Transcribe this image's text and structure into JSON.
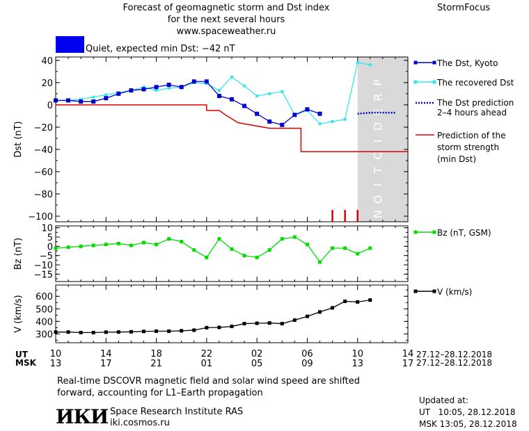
{
  "header": {
    "title_lines": [
      "Forecast of geomagnetic storm and Dst index",
      "for the next several hours",
      "www.spaceweather.ru"
    ],
    "brand": "StormFocus"
  },
  "status": {
    "label": "Quiet, expected min Dst: −42 nT",
    "color": "#0000ee"
  },
  "colors": {
    "kyoto": "#0000cc",
    "recovered": "#33e6ee",
    "prediction": "#0000cc",
    "storm": "#dd0000",
    "bz": "#00dd00",
    "speed": "#000000",
    "shade": "#d9d9d9",
    "ticks_red": "#dd0000"
  },
  "time_axis": {
    "ut_label": "UT",
    "msk_label": "MSK",
    "ut_ticks": [
      "10",
      "14",
      "18",
      "22",
      "02",
      "06",
      "10",
      "14"
    ],
    "msk_ticks": [
      "13",
      "17",
      "21",
      "01",
      "05",
      "09",
      "13",
      "17"
    ],
    "ut_range": "27.12–28.12.2018",
    "msk_range": "27.12–28.12.2018"
  },
  "shade_text": "PREDICTION",
  "chart_data": [
    {
      "type": "line",
      "ylabel": "Dst (nT)",
      "ylim": [
        -105,
        43
      ],
      "yticks": [
        "40",
        "20",
        "0",
        "−20",
        "−40",
        "−60",
        "−80",
        "−100"
      ],
      "yticks_values": [
        40,
        20,
        0,
        -20,
        -40,
        -60,
        -80,
        -100
      ],
      "x_range_hours": [
        10,
        38
      ],
      "series": [
        {
          "name": "The Dst, Kyoto",
          "x": [
            10,
            11,
            12,
            13,
            14,
            15,
            16,
            17,
            18,
            19,
            20,
            21,
            22,
            23,
            24,
            25,
            26,
            27,
            28,
            29,
            30,
            31
          ],
          "values": [
            4,
            4,
            3,
            3,
            6,
            10,
            13,
            14,
            16,
            18,
            16,
            21,
            21,
            8,
            5,
            -1,
            -8,
            -15,
            -18,
            -9,
            -4,
            -8
          ]
        },
        {
          "name": "The recovered Dst",
          "x": [
            10,
            11,
            12,
            13,
            14,
            15,
            16,
            17,
            18,
            19,
            20,
            21,
            22,
            23,
            24,
            25,
            26,
            27,
            28,
            29,
            30,
            31,
            32,
            33,
            34,
            35
          ],
          "values": [
            4,
            4,
            5,
            7,
            9,
            11,
            13,
            16,
            13,
            15,
            16,
            20,
            19,
            13,
            25,
            17,
            8,
            10,
            12,
            -9,
            -5,
            -17,
            -15,
            -13,
            38,
            36
          ]
        },
        {
          "name": "The Dst prediction 2–4 hours ahead",
          "x": [
            34,
            35,
            36,
            37
          ],
          "values": [
            -8,
            -7,
            -7,
            -7
          ]
        },
        {
          "name": "Prediction of the storm strength (min Dst)",
          "x": [
            10,
            20.5,
            20.5,
            22,
            22,
            23,
            23.5,
            24.5,
            27,
            28.5,
            29.5,
            29.5,
            38
          ],
          "values": [
            0,
            0,
            0,
            0,
            -5,
            -5,
            -9,
            -16,
            -21,
            -21,
            -21,
            -42,
            -42
          ]
        }
      ],
      "red_ticks_x": [
        32,
        33,
        34
      ],
      "prediction_start_hour": 34
    },
    {
      "type": "line",
      "ylabel": "Bz (nT)",
      "ylim": [
        -19,
        11
      ],
      "yticks": [
        "10",
        "5",
        "0",
        "−5",
        "−10",
        "−15"
      ],
      "yticks_values": [
        10,
        5,
        0,
        -5,
        -10,
        -15
      ],
      "series": [
        {
          "name": "Bz (nT, GSM)",
          "x": [
            10,
            11,
            12,
            13,
            14,
            15,
            16,
            17,
            18,
            19,
            20,
            21,
            22,
            23,
            24,
            25,
            26,
            27,
            28,
            29,
            30,
            31,
            32,
            33,
            34,
            35
          ],
          "values": [
            -1,
            -0.5,
            0,
            0.5,
            1,
            1.5,
            0.5,
            2,
            1,
            4,
            2.5,
            -2,
            -6,
            4,
            -1.5,
            -5,
            -6,
            -2,
            4,
            5,
            1,
            -8.5,
            -1,
            -1,
            -4,
            -1
          ]
        }
      ]
    },
    {
      "type": "line",
      "ylabel": "V (km/s)",
      "ylim": [
        230,
        690
      ],
      "yticks": [
        "600",
        "500",
        "400",
        "300"
      ],
      "yticks_values": [
        600,
        500,
        400,
        300
      ],
      "series": [
        {
          "name": "V (km/s)",
          "x": [
            10,
            11,
            12,
            13,
            14,
            15,
            16,
            17,
            18,
            19,
            20,
            21,
            22,
            23,
            24,
            25,
            26,
            27,
            28,
            29,
            30,
            31,
            32,
            33,
            34,
            35
          ],
          "values": [
            315,
            315,
            311,
            311,
            314,
            315,
            317,
            320,
            322,
            322,
            325,
            330,
            350,
            352,
            360,
            382,
            385,
            387,
            382,
            410,
            440,
            475,
            508,
            560,
            555,
            570
          ]
        }
      ]
    }
  ],
  "legend": {
    "kyoto": "The Dst, Kyoto",
    "recovered": "The recovered Dst",
    "prediction_line1": "The Dst prediction",
    "prediction_line2": "2–4 hours ahead",
    "storm_line1": "Prediction of the",
    "storm_line2": "storm strength",
    "storm_line3": "(min Dst)",
    "bz": "Bz (nT, GSM)",
    "speed": "V (km/s)"
  },
  "footer": {
    "note_line1": "Real-time DSCOVR magnetic field and solar wind speed are shifted",
    "note_line2": "forward, accounting for L1–Earth propagation",
    "logo": "ИКИ",
    "institute": "Space Research Institute RAS",
    "site": "iki.cosmos.ru",
    "updated_label": "Updated at:",
    "updated_ut": "UT   10:05, 28.12.2018",
    "updated_msk": "MSK 13:05, 28.12.2018"
  }
}
